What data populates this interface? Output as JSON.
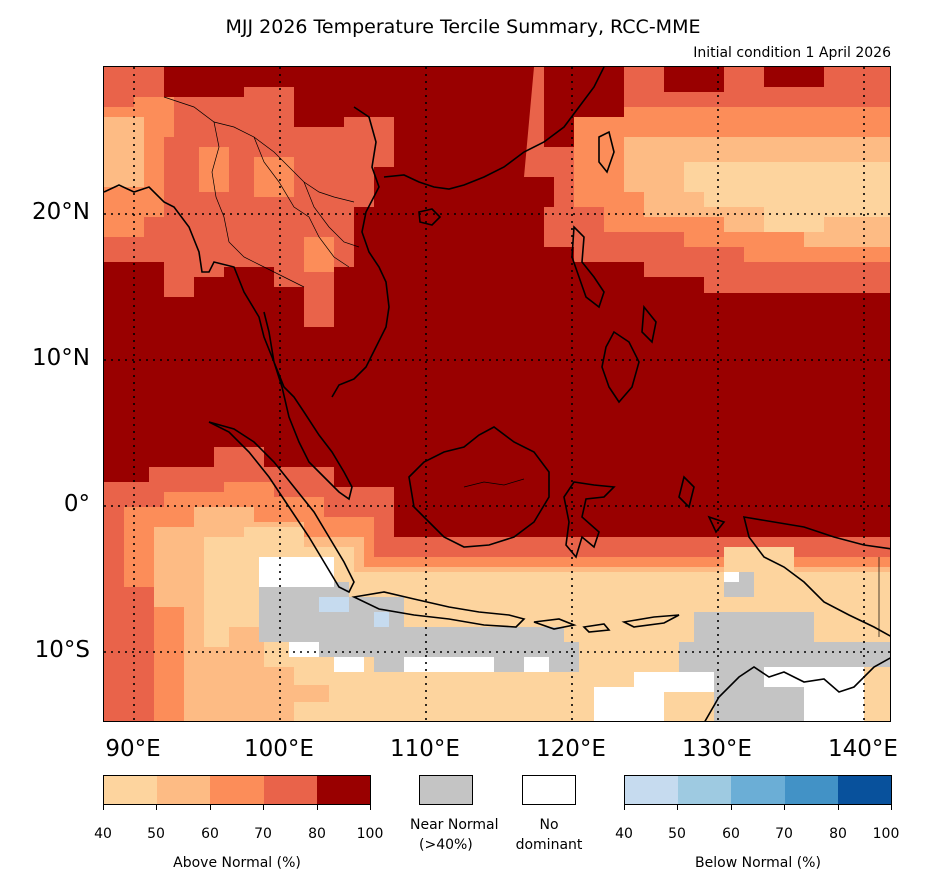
{
  "title": "MJJ 2026 Temperature Tercile Summary, RCC-MME",
  "subtitle": "Initial condition 1 April 2026",
  "map": {
    "latitude_labels": [
      "20°N",
      "10°N",
      "0°",
      "10°S"
    ],
    "longitude_labels": [
      "90°E",
      "100°E",
      "110°E",
      "120°E",
      "130°E",
      "140°E"
    ],
    "categories": {
      "above_normal": [
        "#fdd49e",
        "#fdbb84",
        "#fc8d59",
        "#e9634a",
        "#990000"
      ],
      "near_normal": "#c4c4c4",
      "no_dominant": "#ffffff",
      "below_normal": [
        "#c6dbef",
        "#9ecae1",
        "#6baed6",
        "#4292c6",
        "#08519c"
      ]
    }
  },
  "legend": {
    "above_normal": {
      "label": "Above Normal (%)",
      "ticks": [
        "40",
        "50",
        "60",
        "70",
        "80",
        "100"
      ],
      "colors": [
        "#fdd49e",
        "#fdbb84",
        "#fc8d59",
        "#e9634a",
        "#990000"
      ]
    },
    "near_normal": {
      "label_line1": "Near Normal",
      "label_line2": "(>40%)",
      "color": "#c4c4c4"
    },
    "no_dominant": {
      "label_line1": "No",
      "label_line2": "dominant",
      "color": "#ffffff"
    },
    "below_normal": {
      "label": "Below Normal (%)",
      "ticks": [
        "40",
        "50",
        "60",
        "70",
        "80",
        "100"
      ],
      "colors": [
        "#c6dbef",
        "#9ecae1",
        "#6baed6",
        "#4292c6",
        "#08519c"
      ]
    }
  }
}
